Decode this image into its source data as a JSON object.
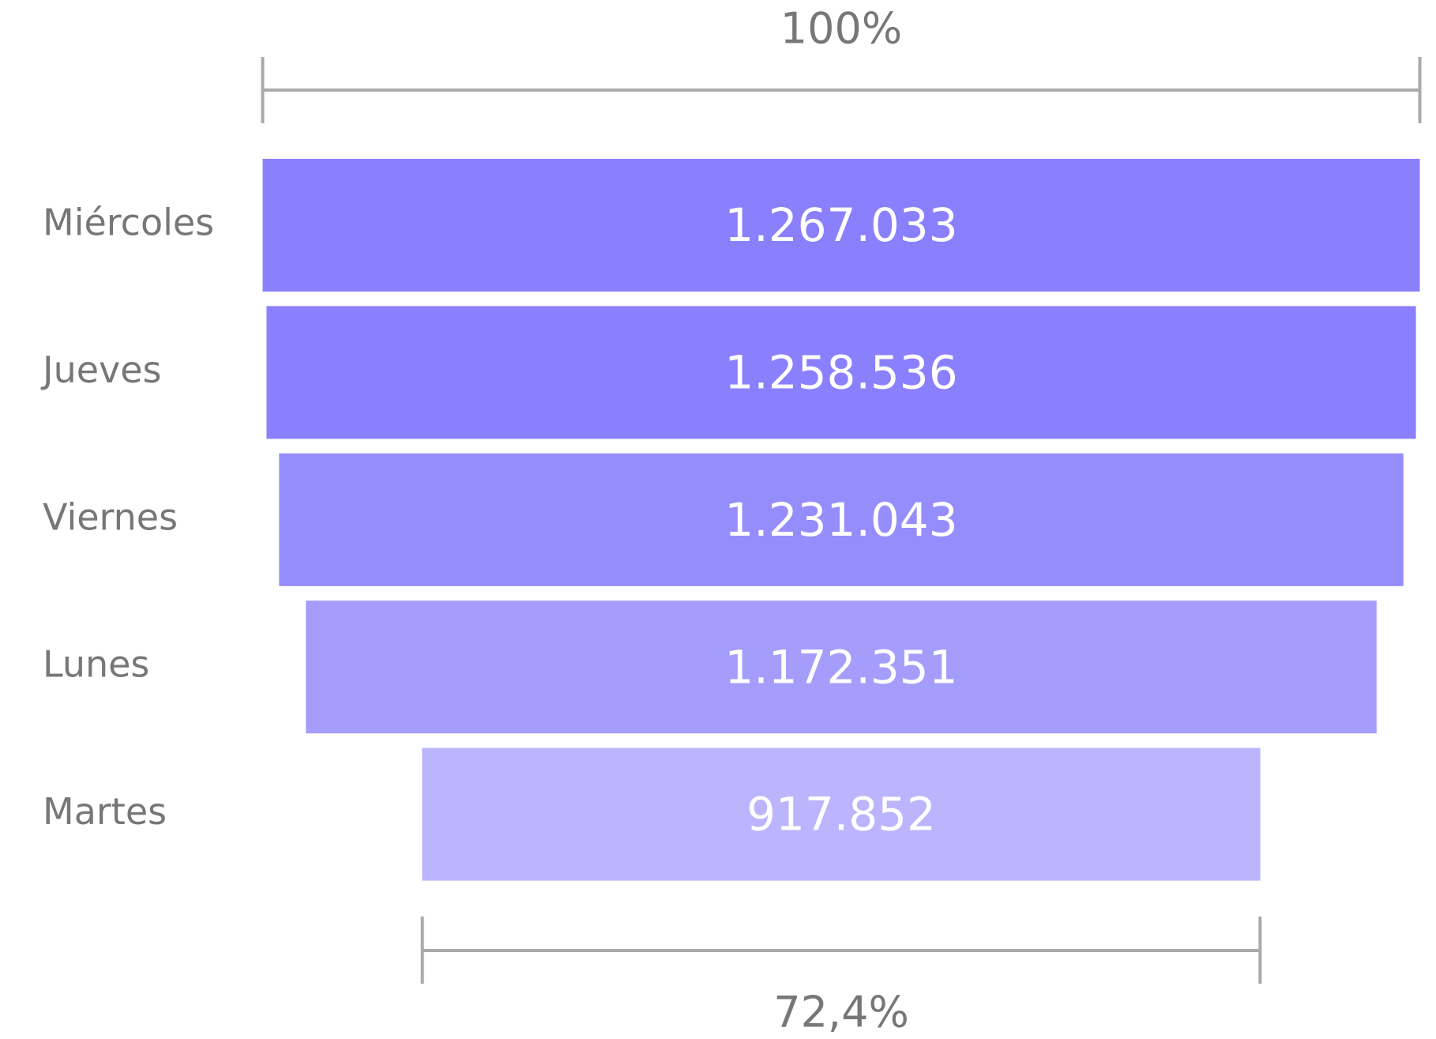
{
  "chart_data": {
    "type": "funnel",
    "categories": [
      "Miércoles",
      "Jueves",
      "Viernes",
      "Lunes",
      "Martes"
    ],
    "values": [
      1267033,
      1258536,
      1231043,
      1172351,
      917852
    ],
    "value_labels": [
      "1.267.033",
      "1.258.536",
      "1.231.043",
      "1.172.351",
      "917.852"
    ],
    "colors": [
      "#8a80fd",
      "#8a80fd",
      "#958dfc",
      "#a59dfc",
      "#bab5fd"
    ],
    "top_percent": {
      "value": 100,
      "label": "100%"
    },
    "bottom_percent": {
      "value": 72.4,
      "label": "72,4%"
    }
  }
}
